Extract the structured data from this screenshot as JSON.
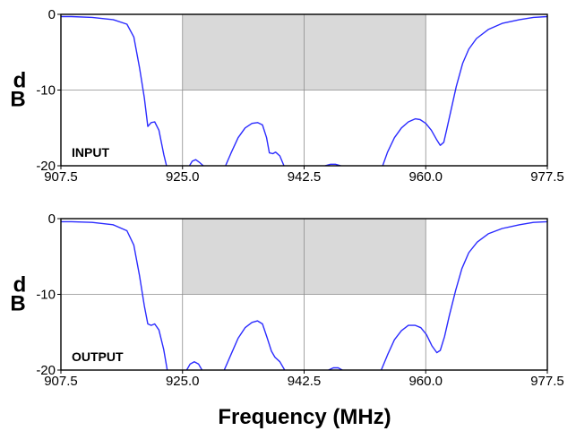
{
  "chart_data": [
    {
      "type": "line",
      "label": "INPUT",
      "ylabel_top": "d",
      "ylabel_bottom": "B",
      "xlim": [
        907.5,
        977.5
      ],
      "ylim": [
        -20,
        0
      ],
      "xticks": [
        "907.5",
        "925.0",
        "942.5",
        "960.0",
        "977.5"
      ],
      "yticks": [
        "0",
        "-10",
        "-20"
      ],
      "grid": true,
      "shaded_band": {
        "x": [
          925.0,
          960.0
        ],
        "y": [
          -10,
          0
        ]
      },
      "series": [
        {
          "color": "#2b2bff",
          "segments": [
            [
              [
                907.5,
                -0.3
              ],
              [
                909,
                -0.3
              ],
              [
                912,
                -0.4
              ],
              [
                915,
                -0.7
              ],
              [
                917,
                -1.3
              ],
              [
                918,
                -3
              ],
              [
                918.8,
                -7
              ],
              [
                919.5,
                -11
              ],
              [
                920,
                -14.8
              ],
              [
                920.5,
                -14.3
              ],
              [
                921,
                -14.2
              ],
              [
                921.6,
                -15.3
              ],
              [
                922.3,
                -18.5
              ],
              [
                922.7,
                -20
              ]
            ],
            [
              [
                926.0,
                -20
              ],
              [
                926.4,
                -19.4
              ],
              [
                926.9,
                -19.2
              ],
              [
                927.5,
                -19.6
              ],
              [
                928,
                -20
              ]
            ],
            [
              [
                931.2,
                -20
              ],
              [
                932,
                -18.3
              ],
              [
                933,
                -16.3
              ],
              [
                934,
                -15
              ],
              [
                935,
                -14.4
              ],
              [
                935.8,
                -14.3
              ],
              [
                936.5,
                -14.6
              ],
              [
                937.1,
                -16.3
              ],
              [
                937.5,
                -18.3
              ],
              [
                938,
                -18.4
              ],
              [
                938.4,
                -18.2
              ],
              [
                939,
                -18.7
              ],
              [
                939.6,
                -20
              ]
            ],
            [
              [
                945.5,
                -20
              ],
              [
                946.3,
                -19.8
              ],
              [
                947,
                -19.8
              ],
              [
                947.8,
                -20
              ]
            ],
            [
              [
                953.8,
                -20
              ],
              [
                954.5,
                -18.2
              ],
              [
                955.5,
                -16.3
              ],
              [
                956.5,
                -15
              ],
              [
                957.5,
                -14.2
              ],
              [
                958.5,
                -13.8
              ],
              [
                959.2,
                -13.9
              ],
              [
                960,
                -14.4
              ],
              [
                960.8,
                -15.3
              ],
              [
                961.6,
                -16.6
              ],
              [
                962.1,
                -17.3
              ],
              [
                962.6,
                -16.9
              ],
              [
                963,
                -15.3
              ],
              [
                963.6,
                -12.8
              ],
              [
                964.4,
                -9.5
              ],
              [
                965.3,
                -6.5
              ],
              [
                966.2,
                -4.6
              ],
              [
                967.3,
                -3.2
              ],
              [
                969,
                -2
              ],
              [
                971,
                -1.2
              ],
              [
                973.5,
                -0.7
              ],
              [
                975.5,
                -0.4
              ],
              [
                977.5,
                -0.3
              ]
            ]
          ]
        }
      ]
    },
    {
      "type": "line",
      "label": "OUTPUT",
      "ylabel_top": "d",
      "ylabel_bottom": "B",
      "xlim": [
        907.5,
        977.5
      ],
      "ylim": [
        -20,
        0
      ],
      "xticks": [
        "907.5",
        "925.0",
        "942.5",
        "960.0",
        "977.5"
      ],
      "yticks": [
        "0",
        "-10",
        "-20"
      ],
      "grid": true,
      "shaded_band": {
        "x": [
          925.0,
          960.0
        ],
        "y": [
          -10,
          0
        ]
      },
      "series": [
        {
          "color": "#2b2bff",
          "segments": [
            [
              [
                907.5,
                -0.4
              ],
              [
                909,
                -0.4
              ],
              [
                912,
                -0.5
              ],
              [
                915,
                -0.8
              ],
              [
                917,
                -1.6
              ],
              [
                918,
                -3.5
              ],
              [
                918.8,
                -7.5
              ],
              [
                919.5,
                -11.5
              ],
              [
                920,
                -13.9
              ],
              [
                920.5,
                -14.1
              ],
              [
                921,
                -13.9
              ],
              [
                921.6,
                -14.7
              ],
              [
                922.3,
                -17.3
              ],
              [
                922.8,
                -20
              ]
            ],
            [
              [
                925.6,
                -20
              ],
              [
                926.1,
                -19.2
              ],
              [
                926.7,
                -18.9
              ],
              [
                927.3,
                -19.2
              ],
              [
                927.8,
                -20
              ]
            ],
            [
              [
                931.0,
                -20
              ],
              [
                932,
                -17.9
              ],
              [
                933,
                -15.8
              ],
              [
                934,
                -14.4
              ],
              [
                935,
                -13.7
              ],
              [
                935.8,
                -13.5
              ],
              [
                936.5,
                -13.9
              ],
              [
                937.2,
                -15.8
              ],
              [
                937.8,
                -17.5
              ],
              [
                938.3,
                -18.3
              ],
              [
                939,
                -18.9
              ],
              [
                939.7,
                -20
              ]
            ],
            [
              [
                946.0,
                -20
              ],
              [
                946.7,
                -19.7
              ],
              [
                947.4,
                -19.7
              ],
              [
                948,
                -20
              ]
            ],
            [
              [
                953.6,
                -20
              ],
              [
                954.5,
                -18
              ],
              [
                955.5,
                -16
              ],
              [
                956.5,
                -14.8
              ],
              [
                957.5,
                -14.1
              ],
              [
                958.5,
                -14.1
              ],
              [
                959.3,
                -14.4
              ],
              [
                960.1,
                -15.3
              ],
              [
                960.9,
                -16.8
              ],
              [
                961.6,
                -17.7
              ],
              [
                962.1,
                -17.4
              ],
              [
                962.7,
                -15.6
              ],
              [
                963.4,
                -12.8
              ],
              [
                964.3,
                -9.5
              ],
              [
                965.2,
                -6.6
              ],
              [
                966.2,
                -4.5
              ],
              [
                967.4,
                -3.1
              ],
              [
                969,
                -2
              ],
              [
                971,
                -1.3
              ],
              [
                973.5,
                -0.8
              ],
              [
                975.5,
                -0.5
              ],
              [
                977.5,
                -0.4
              ]
            ]
          ]
        }
      ]
    }
  ],
  "xtitle": "Frequency (MHz)"
}
